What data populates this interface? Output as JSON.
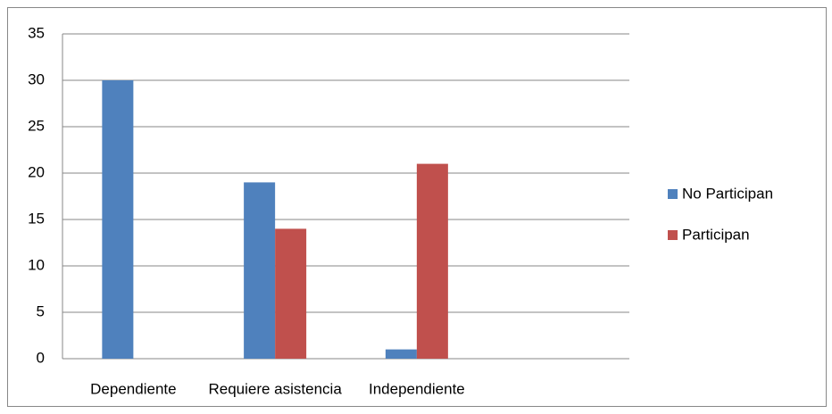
{
  "chart_data": {
    "type": "bar",
    "categories": [
      "Dependiente",
      "Requiere asistencia",
      "Independiente",
      null
    ],
    "series": [
      {
        "name": "No Participan",
        "color": "#4f81bd",
        "values": [
          30,
          19,
          1,
          null
        ]
      },
      {
        "name": "Participan",
        "color": "#c0504d",
        "values": [
          0,
          14,
          21,
          null
        ]
      }
    ],
    "ylim": [
      0,
      35
    ],
    "yticks": [
      0,
      5,
      10,
      15,
      20,
      25,
      30,
      35
    ],
    "grid": true,
    "legend": "right"
  }
}
